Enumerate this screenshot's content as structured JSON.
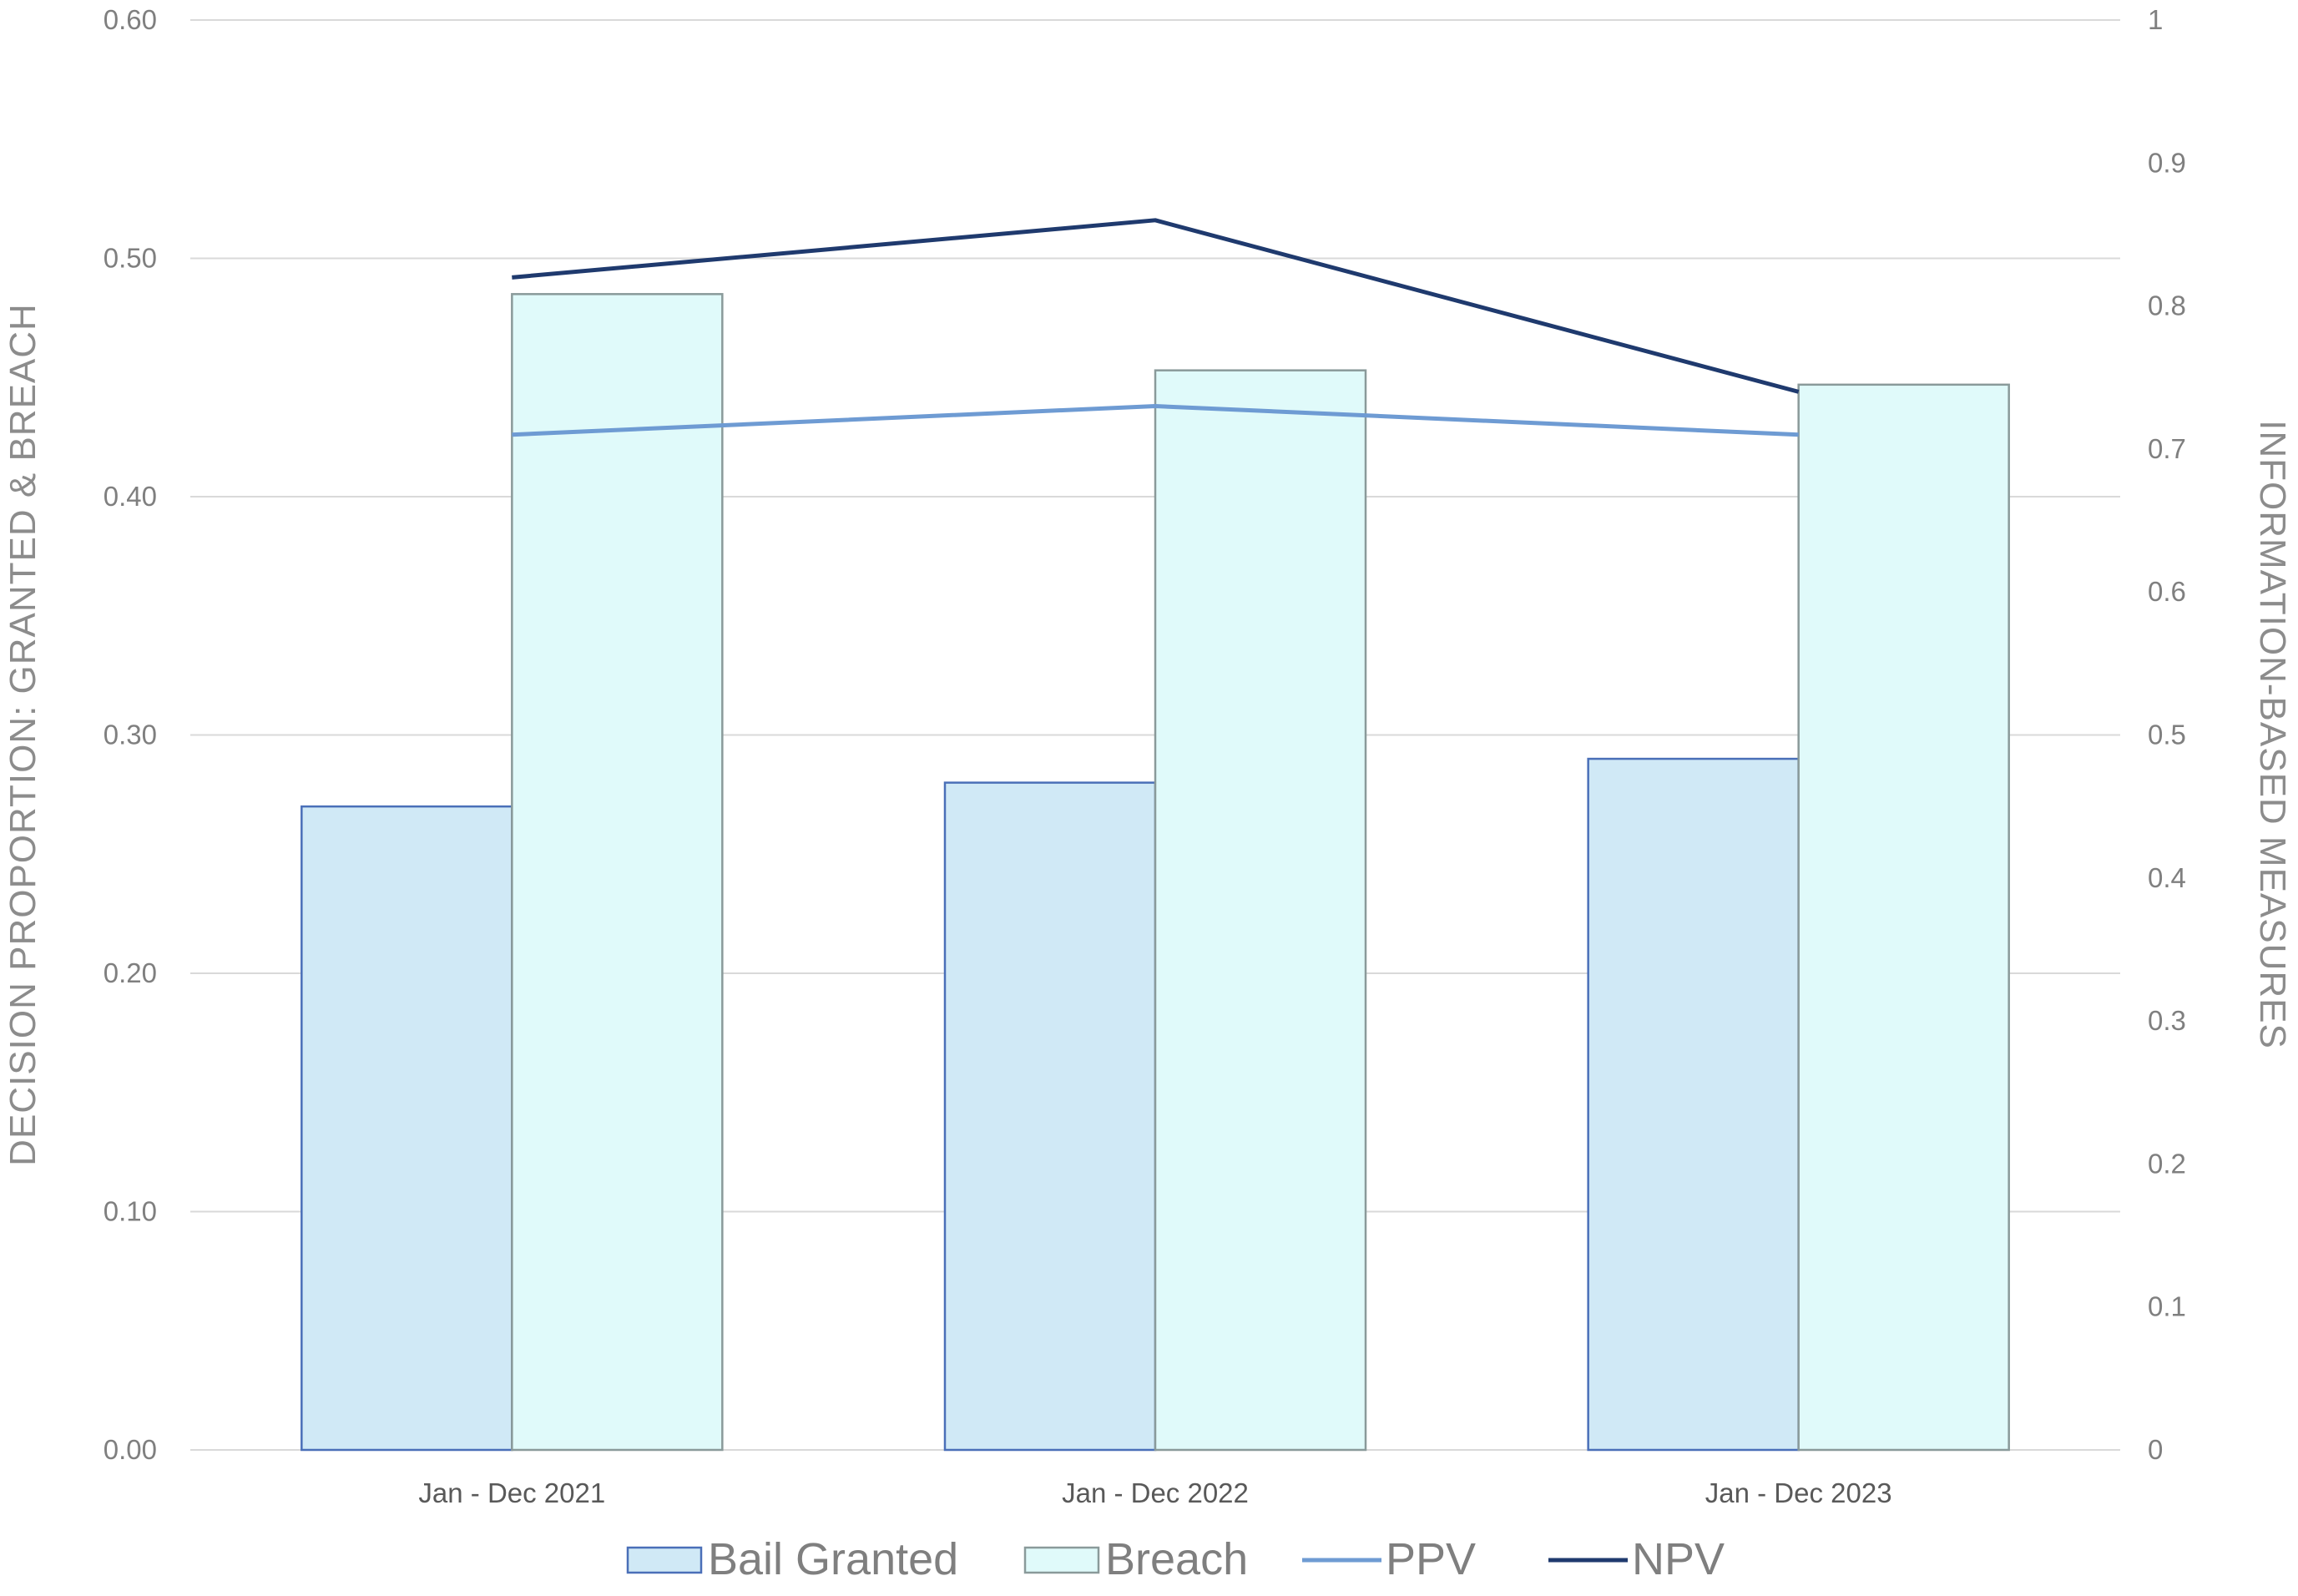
{
  "chart_data": {
    "type": "bar",
    "categories": [
      "Jan - Dec 2021",
      "Jan - Dec 2022",
      "Jan - Dec 2023"
    ],
    "series": [
      {
        "name": "Bail Granted",
        "kind": "bar",
        "axis": "left",
        "values": [
          0.27,
          0.28,
          0.29
        ],
        "fill": "#d0e9f6",
        "stroke": "#4a6fb8"
      },
      {
        "name": "Breach",
        "kind": "bar",
        "axis": "left",
        "values": [
          0.485,
          0.453,
          0.447
        ],
        "fill": "#e0fafa",
        "stroke": "#8a9a9a"
      },
      {
        "name": "PPV",
        "kind": "line",
        "axis": "right",
        "values": [
          0.71,
          0.73,
          0.71
        ],
        "stroke": "#6e9bd3"
      },
      {
        "name": "NPV",
        "kind": "line",
        "axis": "right",
        "values": [
          0.82,
          0.86,
          0.74
        ],
        "stroke": "#1f3a6e"
      }
    ],
    "ylabel": "DECISION PROPORTION: GRANTED & BREACH",
    "y2label": "INFORMATION-BASED MEASURES",
    "ylim": [
      0,
      0.6
    ],
    "y2lim": [
      0,
      1
    ],
    "yticks": [
      "0.00",
      "0.10",
      "0.20",
      "0.30",
      "0.40",
      "0.50",
      "0.60"
    ],
    "y2ticks": [
      "0",
      "0.1",
      "0.2",
      "0.3",
      "0.4",
      "0.5",
      "0.6",
      "0.7",
      "0.8",
      "0.9",
      "1"
    ],
    "grid": true,
    "grid_color": "#d9d9d9",
    "legend_position": "bottom"
  }
}
